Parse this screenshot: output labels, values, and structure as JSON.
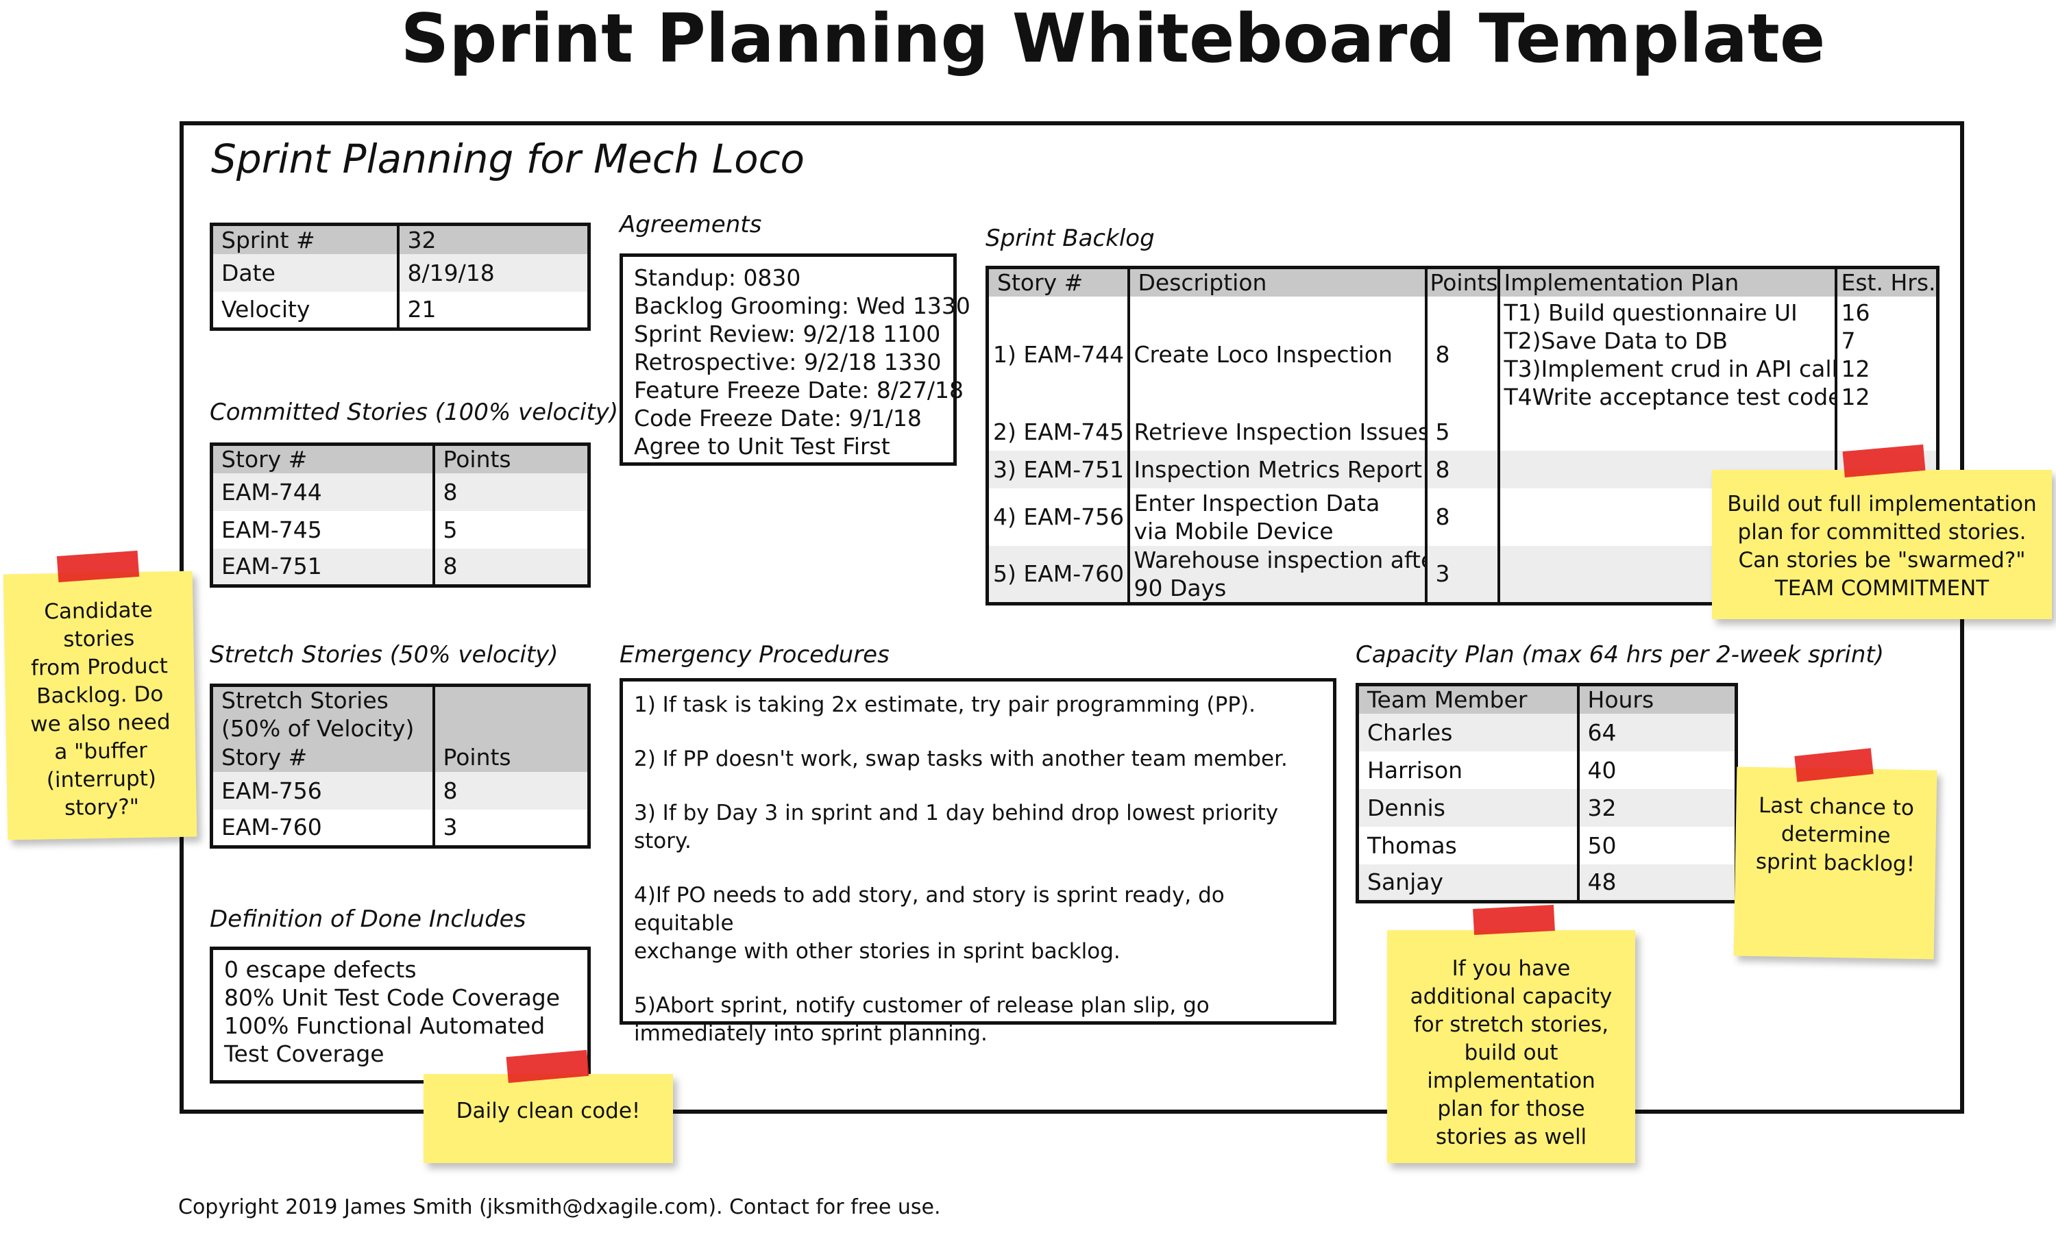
{
  "page_title": "Sprint Planning Whiteboard Template",
  "board_title": "Sprint Planning for Mech Loco",
  "sprint_info": {
    "rows": [
      {
        "label": "Sprint #",
        "value": "32"
      },
      {
        "label": "Date",
        "value": "8/19/18"
      },
      {
        "label": "Velocity",
        "value": "21"
      }
    ]
  },
  "agreements": {
    "heading": "Agreements",
    "lines": [
      "Standup: 0830",
      "Backlog Grooming: Wed 1330",
      "Sprint Review: 9/2/18 1100",
      "Retrospective: 9/2/18 1330",
      "Feature Freeze Date: 8/27/18",
      "Code Freeze Date: 9/1/18",
      "Agree to Unit Test First"
    ]
  },
  "committed": {
    "heading": "Committed Stories (100% velocity)",
    "col_story": "Story #",
    "col_points": "Points",
    "rows": [
      {
        "story": "EAM-744",
        "points": "8"
      },
      {
        "story": "EAM-745",
        "points": "5"
      },
      {
        "story": "EAM-751",
        "points": "8"
      }
    ]
  },
  "stretch": {
    "heading": "Stretch Stories (50% velocity)",
    "header_line1": "Stretch Stories",
    "header_line2": "(50% of Velocity)",
    "col_story": "Story #",
    "col_points": "Points",
    "rows": [
      {
        "story": "EAM-756",
        "points": "8"
      },
      {
        "story": "EAM-760",
        "points": "3"
      }
    ]
  },
  "dod": {
    "heading": "Definition of Done Includes",
    "lines": [
      "0 escape defects",
      "80% Unit Test Code Coverage",
      "100% Functional Automated",
      "Test Coverage"
    ]
  },
  "backlog": {
    "heading": "Sprint Backlog",
    "columns": [
      "Story #",
      "Description",
      "Points",
      "Implementation Plan",
      "Est. Hrs."
    ],
    "row1": {
      "story": "1) EAM-744",
      "desc": "Create Loco Inspection",
      "points": "8",
      "plan": [
        "T1) Build questionnaire UI",
        "T2)Save Data to DB",
        "T3)Implement crud in API call",
        "T4Write acceptance test code"
      ],
      "hrs": [
        "16",
        "7",
        "12",
        "12"
      ]
    },
    "rows": [
      {
        "story": "2) EAM-745",
        "desc1": "Retrieve Inspection Issues",
        "desc2": "",
        "points": "5"
      },
      {
        "story": "3) EAM-751",
        "desc1": "Inspection Metrics Report",
        "desc2": "",
        "points": "8"
      },
      {
        "story": "4) EAM-756",
        "desc1": "Enter Inspection Data",
        "desc2": "via Mobile Device",
        "points": "8"
      },
      {
        "story": "5) EAM-760",
        "desc1": "Warehouse inspection after",
        "desc2": "90 Days",
        "points": "3"
      }
    ]
  },
  "emergency": {
    "heading": "Emergency Procedures",
    "items": [
      [
        "1) If task is taking 2x estimate, try pair programming (PP)."
      ],
      [
        "2) If PP doesn't work, swap tasks with another team member."
      ],
      [
        "3) If by Day 3 in sprint and 1 day behind drop lowest priority story."
      ],
      [
        "4)If PO needs to add story, and story is sprint ready, do equitable",
        "exchange with other stories in sprint backlog."
      ],
      [
        "5)Abort sprint, notify customer of release plan slip, go",
        "immediately into sprint planning."
      ]
    ]
  },
  "capacity": {
    "heading": "Capacity Plan (max 64 hrs per 2-week sprint)",
    "col_member": "Team Member",
    "col_hours": "Hours",
    "rows": [
      {
        "member": "Charles",
        "hours": "64"
      },
      {
        "member": "Harrison",
        "hours": "40"
      },
      {
        "member": "Dennis",
        "hours": "32"
      },
      {
        "member": "Thomas",
        "hours": "50"
      },
      {
        "member": "Sanjay",
        "hours": "48"
      }
    ]
  },
  "notes": {
    "candidate": [
      "Candidate",
      "stories",
      "from Product",
      "Backlog. Do",
      "we also need",
      "a \"buffer",
      "(interrupt)",
      "story?\""
    ],
    "commitment": [
      "Build out full implementation",
      "plan for committed stories.",
      "Can stories be \"swarmed?\"",
      "TEAM COMMITMENT"
    ],
    "last_chance": [
      "Last chance to",
      "determine",
      "sprint backlog!"
    ],
    "additional": [
      "If you have",
      "additional capacity",
      "for stretch stories,",
      "build out",
      "implementation",
      "plan for those",
      "stories as well"
    ],
    "clean_code": [
      "Daily clean code!"
    ]
  },
  "colors": {
    "note": "#fff176",
    "tape": "#e52420",
    "header": "#c8c8c8",
    "stripe": "#ededed"
  },
  "copyright": "Copyright 2019 James Smith (jksmith@dxagile.com). Contact for free use."
}
